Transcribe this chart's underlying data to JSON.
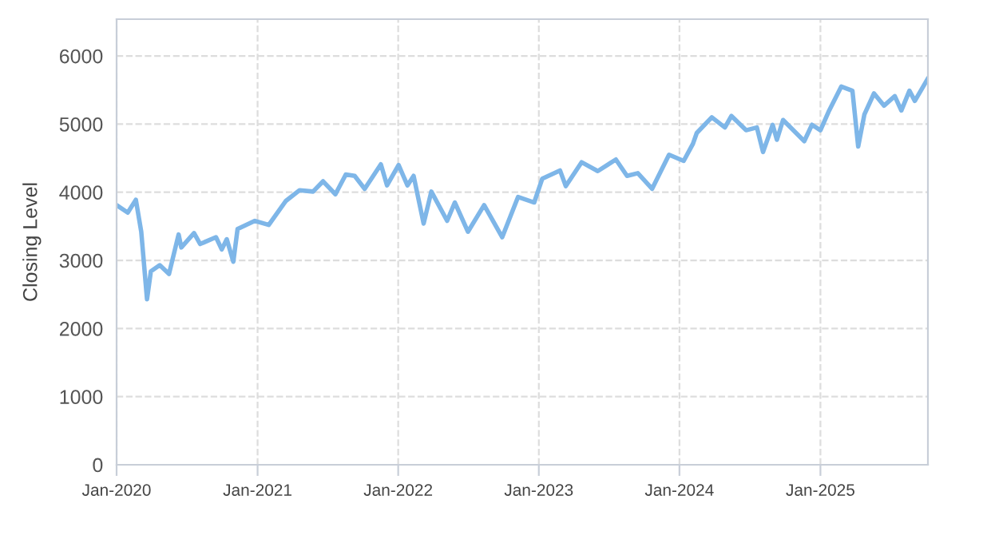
{
  "chart_data": {
    "type": "line",
    "ylabel": "Closing Level",
    "x": [
      "2020-01-01",
      "2020-01-30",
      "2020-02-20",
      "2020-03-05",
      "2020-03-20",
      "2020-03-30",
      "2020-04-22",
      "2020-05-16",
      "2020-06-10",
      "2020-06-17",
      "2020-07-20",
      "2020-08-05",
      "2020-09-15",
      "2020-09-30",
      "2020-10-13",
      "2020-10-30",
      "2020-11-10",
      "2020-12-25",
      "2021-01-30",
      "2021-03-15",
      "2021-04-20",
      "2021-05-25",
      "2021-06-20",
      "2021-07-22",
      "2021-08-18",
      "2021-09-10",
      "2021-10-06",
      "2021-11-17",
      "2021-12-03",
      "2022-01-02",
      "2022-01-25",
      "2022-02-10",
      "2022-03-08",
      "2022-03-28",
      "2022-05-08",
      "2022-05-28",
      "2022-07-01",
      "2022-08-12",
      "2022-09-28",
      "2022-11-08",
      "2022-12-20",
      "2023-01-10",
      "2023-02-25",
      "2023-03-12",
      "2023-04-22",
      "2023-06-03",
      "2023-07-20",
      "2023-08-18",
      "2023-09-15",
      "2023-10-22",
      "2023-12-05",
      "2024-01-12",
      "2024-02-05",
      "2024-02-15",
      "2024-03-25",
      "2024-04-28",
      "2024-05-15",
      "2024-06-22",
      "2024-07-20",
      "2024-08-05",
      "2024-08-30",
      "2024-09-10",
      "2024-09-26",
      "2024-11-20",
      "2024-12-10",
      "2025-01-01",
      "2025-01-22",
      "2025-02-24",
      "2025-03-25",
      "2025-04-09",
      "2025-04-25",
      "2025-05-20",
      "2025-06-15",
      "2025-07-13",
      "2025-07-30",
      "2025-08-20",
      "2025-09-03",
      "2025-10-06"
    ],
    "series": [
      {
        "color": "#7eb6e8",
        "values": [
          3810,
          3700,
          3890,
          3420,
          2430,
          2840,
          2930,
          2800,
          3380,
          3190,
          3400,
          3240,
          3340,
          3160,
          3310,
          2980,
          3460,
          3580,
          3520,
          3870,
          4030,
          4010,
          4160,
          3970,
          4260,
          4240,
          4050,
          4410,
          4100,
          4400,
          4100,
          4240,
          3540,
          4010,
          3580,
          3850,
          3420,
          3810,
          3340,
          3930,
          3850,
          4200,
          4320,
          4090,
          4440,
          4310,
          4480,
          4240,
          4280,
          4050,
          4550,
          4460,
          4710,
          4870,
          5100,
          4950,
          5120,
          4910,
          4950,
          4590,
          4990,
          4770,
          5060,
          4750,
          4990,
          4910,
          5180,
          5550,
          5490,
          4670,
          5140,
          5450,
          5270,
          5410,
          5200,
          5490,
          5340,
          5660
        ]
      }
    ],
    "xlim": [
      "2020-01-01",
      "2025-10-07"
    ],
    "xticks": [
      {
        "value": "2020-01-01",
        "label": "Jan-2020"
      },
      {
        "value": "2021-01-01",
        "label": "Jan-2021"
      },
      {
        "value": "2022-01-01",
        "label": "Jan-2022"
      },
      {
        "value": "2023-01-01",
        "label": "Jan-2023"
      },
      {
        "value": "2024-01-01",
        "label": "Jan-2024"
      },
      {
        "value": "2025-01-01",
        "label": "Jan-2025"
      }
    ],
    "ylim": [
      0,
      6540
    ],
    "yticks": [
      0,
      1000,
      2000,
      3000,
      4000,
      5000,
      6000
    ],
    "grid": true,
    "marker": "none",
    "line_style": "solid"
  }
}
